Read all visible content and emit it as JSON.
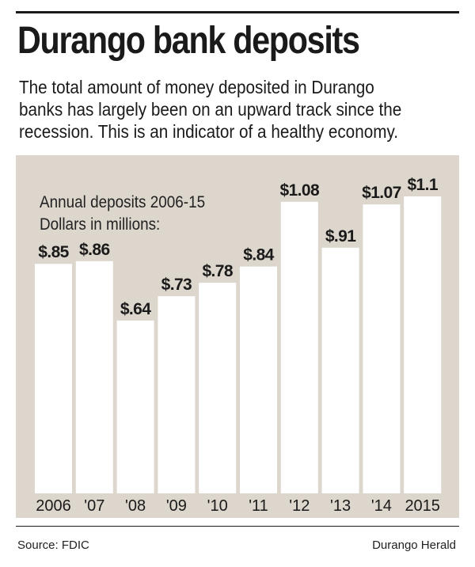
{
  "header": {
    "title": "Durango bank deposits",
    "subtitle_line1": "The total amount of money deposited in Durango",
    "subtitle_line2": "banks has largely been on an upward track since the",
    "subtitle_line3": "recession. This is an indicator of a healthy economy."
  },
  "chart_note": {
    "line1": "Annual deposits 2006-15",
    "line2": "Dollars in millions:"
  },
  "colors": {
    "panel_background": "#dcd6cc",
    "bar_fill": "#ffffff",
    "text": "#1a1a1a"
  },
  "chart_data": {
    "type": "bar",
    "categories": [
      "2006",
      "'07",
      "'08",
      "'09",
      "'10",
      "'11",
      "'12",
      "'13",
      "'14",
      "2015"
    ],
    "values": [
      0.85,
      0.86,
      0.64,
      0.73,
      0.78,
      0.84,
      1.08,
      0.91,
      1.07,
      1.1
    ],
    "data_labels": [
      "$.85",
      "$.86",
      "$.64",
      "$.73",
      "$.78",
      "$.84",
      "$1.08",
      "$.91",
      "$1.07",
      "$1.1"
    ],
    "title": "",
    "xlabel": "",
    "ylabel": "",
    "ylim": [
      0,
      1.1
    ],
    "grid": false,
    "legend": "none"
  },
  "footer": {
    "source": "Source: FDIC",
    "credit": "Durango Herald"
  }
}
